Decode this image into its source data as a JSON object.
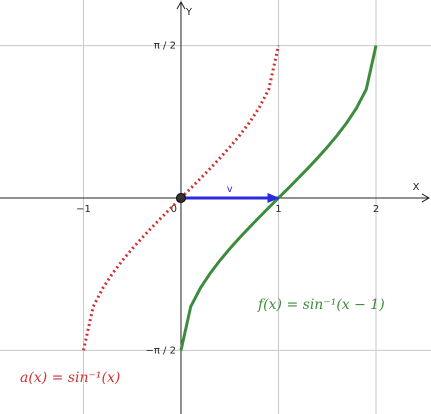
{
  "chart_data": {
    "type": "line",
    "x_label": "X",
    "y_label": "Y",
    "x": [
      -1,
      -0.9,
      -0.8,
      -0.7,
      -0.6,
      -0.5,
      -0.4,
      -0.3,
      -0.2,
      -0.1,
      0,
      0.1,
      0.2,
      0.3,
      0.4,
      0.5,
      0.6,
      0.7,
      0.8,
      0.9,
      1,
      1.1,
      1.2,
      1.3,
      1.4,
      1.5,
      1.6,
      1.7,
      1.8,
      1.9,
      2
    ],
    "series": [
      {
        "name": "a(x)  =  sin⁻¹(x)",
        "color": "#cc3333",
        "dash": "dotted",
        "values": [
          -1.5708,
          -1.1198,
          -0.9273,
          -0.7754,
          -0.6435,
          -0.5236,
          -0.4115,
          -0.3047,
          -0.2014,
          -0.1002,
          0,
          0.1002,
          0.2014,
          0.3047,
          0.4115,
          0.5236,
          0.6435,
          0.7754,
          0.9273,
          1.1198,
          1.5708,
          null,
          null,
          null,
          null,
          null,
          null,
          null,
          null,
          null,
          null
        ]
      },
      {
        "name": "f(x)  =  sin⁻¹(x − 1)",
        "color": "#3d8c3d",
        "dash": "solid",
        "values": [
          null,
          null,
          null,
          null,
          null,
          null,
          null,
          null,
          null,
          null,
          -1.5708,
          -1.1198,
          -0.9273,
          -0.7754,
          -0.6435,
          -0.5236,
          -0.4115,
          -0.3047,
          -0.2014,
          -0.1002,
          0,
          0.1002,
          0.2014,
          0.3047,
          0.4115,
          0.5236,
          0.6435,
          0.7754,
          0.9273,
          1.1198,
          1.5708
        ]
      }
    ],
    "vector": {
      "label": "v",
      "color": "#2b2bdb",
      "from": [
        0,
        0
      ],
      "to": [
        1,
        0
      ]
    },
    "xlim": [
      -1.856,
      2.564
    ],
    "ylim": [
      -2.227,
      2.041
    ],
    "xticks": [
      {
        "value": -1,
        "label": "−1"
      },
      0,
      1,
      2
    ],
    "yticks": [
      {
        "value": -1.5708,
        "label": "−π / 2"
      },
      {
        "value": 1.5708,
        "label": "π / 2"
      }
    ],
    "grid": true
  }
}
